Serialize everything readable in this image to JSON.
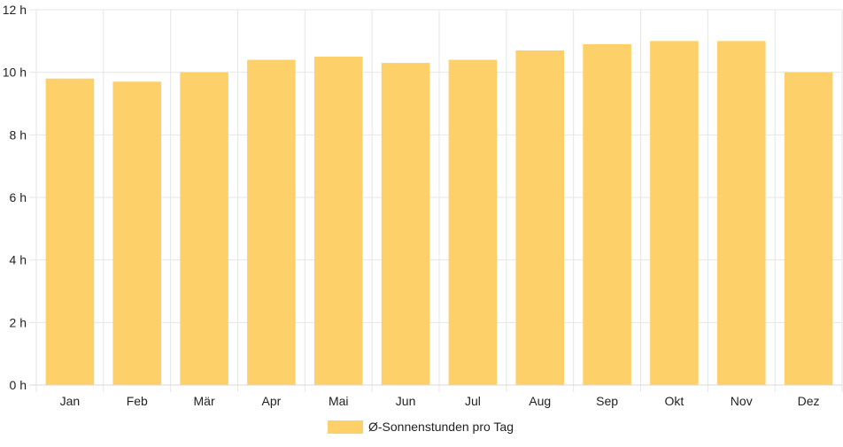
{
  "chart_data": {
    "type": "bar",
    "categories": [
      "Jan",
      "Feb",
      "Mär",
      "Apr",
      "Mai",
      "Jun",
      "Jul",
      "Aug",
      "Sep",
      "Okt",
      "Nov",
      "Dez"
    ],
    "series": [
      {
        "name": "Ø-Sonnenstunden pro Tag",
        "values": [
          9.8,
          9.7,
          10.0,
          10.4,
          10.5,
          10.3,
          10.4,
          10.7,
          10.9,
          11.0,
          11.0,
          10.0
        ]
      }
    ],
    "title": "",
    "xlabel": "",
    "ylabel": "",
    "ylim": [
      0,
      12
    ],
    "y_ticks": [
      "0 h",
      "2 h",
      "4 h",
      "6 h",
      "8 h",
      "10 h",
      "12 h"
    ],
    "grid": true,
    "legend_position": "bottom",
    "bar_color": "#fdd06a",
    "grid_color": "#e6e6e6"
  }
}
